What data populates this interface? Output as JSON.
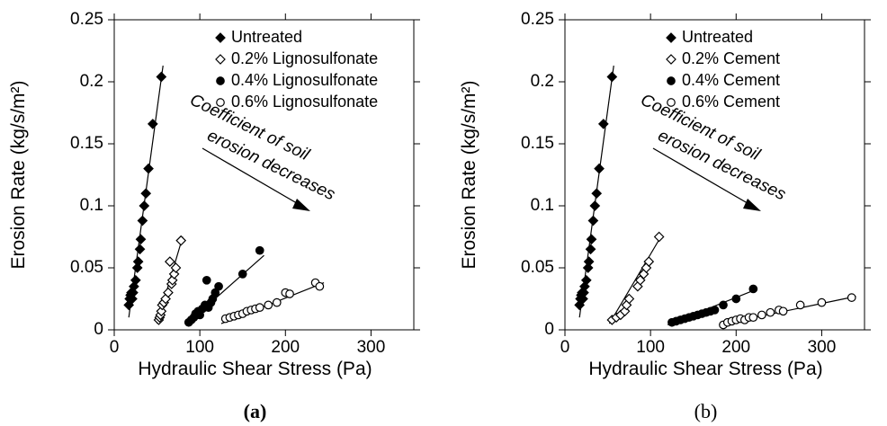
{
  "chart_data": [
    {
      "type": "scatter",
      "panel_label": "(a)",
      "panel_label_bold": true,
      "x_label": "Hydraulic Shear Stress (Pa)",
      "y_label": "Erosion Rate (kg/s/m²)",
      "xlim": [
        0,
        350
      ],
      "ylim": [
        0,
        0.25
      ],
      "xticks": [
        0,
        100,
        200,
        300
      ],
      "yticks": [
        0,
        0.05,
        0.1,
        0.15,
        0.2,
        0.25
      ],
      "legend": "upper right",
      "annotation": [
        "Coefficient of soil",
        "erosion decreases"
      ],
      "series": [
        {
          "name": "Untreated",
          "color": "#000000",
          "marker": "diamond",
          "filled": true,
          "x": [
            17,
            18,
            19,
            20,
            21,
            22,
            23,
            25,
            27,
            28,
            30,
            31,
            33,
            35,
            37,
            40,
            45,
            55
          ],
          "y": [
            0.02,
            0.025,
            0.028,
            0.03,
            0.025,
            0.03,
            0.035,
            0.04,
            0.05,
            0.055,
            0.065,
            0.073,
            0.088,
            0.1,
            0.11,
            0.13,
            0.166,
            0.204
          ],
          "trendline": {
            "x": [
              17,
              57
            ],
            "y": [
              0.01,
              0.213
            ]
          }
        },
        {
          "name": "0.2% Lignosulfonate",
          "color": "#000000",
          "marker": "diamond",
          "filled": false,
          "x": [
            52,
            53,
            54,
            55,
            56,
            58,
            60,
            63,
            65,
            67,
            68,
            70,
            72,
            78
          ],
          "y": [
            0.008,
            0.01,
            0.012,
            0.015,
            0.02,
            0.022,
            0.025,
            0.03,
            0.055,
            0.037,
            0.04,
            0.045,
            0.05,
            0.072
          ],
          "trendline": {
            "x": [
              50,
              80
            ],
            "y": [
              0.005,
              0.075
            ]
          }
        },
        {
          "name": "0.4% Lignosulfonate",
          "color": "#000000",
          "marker": "circle",
          "filled": true,
          "x": [
            87,
            90,
            93,
            95,
            98,
            100,
            103,
            106,
            108,
            110,
            113,
            115,
            118,
            122,
            150,
            170
          ],
          "y": [
            0.006,
            0.008,
            0.01,
            0.013,
            0.015,
            0.012,
            0.017,
            0.02,
            0.04,
            0.018,
            0.022,
            0.025,
            0.03,
            0.035,
            0.045,
            0.064
          ],
          "trendline": {
            "x": [
              85,
              175
            ],
            "y": [
              0.005,
              0.06
            ]
          }
        },
        {
          "name": "0.6% Lignosulfonate",
          "color": "#000000",
          "marker": "circle",
          "filled": false,
          "x": [
            130,
            135,
            140,
            145,
            150,
            155,
            160,
            165,
            170,
            180,
            190,
            200,
            205,
            235,
            240
          ],
          "y": [
            0.009,
            0.01,
            0.011,
            0.012,
            0.013,
            0.015,
            0.016,
            0.017,
            0.018,
            0.02,
            0.022,
            0.03,
            0.029,
            0.038,
            0.035
          ],
          "trendline": {
            "x": [
              125,
              245
            ],
            "y": [
              0.005,
              0.038
            ]
          }
        }
      ]
    },
    {
      "type": "scatter",
      "panel_label": "(b)",
      "panel_label_bold": false,
      "x_label": "Hydraulic Shear Stress (Pa)",
      "y_label": "Erosion Rate (kg/s/m²)",
      "xlim": [
        0,
        350
      ],
      "ylim": [
        0,
        0.25
      ],
      "xticks": [
        0,
        100,
        200,
        300
      ],
      "yticks": [
        0,
        0.05,
        0.1,
        0.15,
        0.2,
        0.25
      ],
      "legend": "upper right",
      "annotation": [
        "Coefficient of soil",
        "erosion decreases"
      ],
      "series": [
        {
          "name": "Untreated",
          "color": "#000000",
          "marker": "diamond",
          "filled": true,
          "x": [
            17,
            18,
            19,
            20,
            21,
            22,
            23,
            25,
            27,
            28,
            30,
            31,
            33,
            35,
            37,
            40,
            45,
            55
          ],
          "y": [
            0.02,
            0.025,
            0.028,
            0.03,
            0.025,
            0.03,
            0.035,
            0.04,
            0.05,
            0.055,
            0.065,
            0.073,
            0.088,
            0.1,
            0.11,
            0.13,
            0.166,
            0.204
          ],
          "trendline": {
            "x": [
              17,
              57
            ],
            "y": [
              0.01,
              0.213
            ]
          }
        },
        {
          "name": "0.2% Cement",
          "color": "#000000",
          "marker": "diamond",
          "filled": false,
          "x": [
            55,
            60,
            65,
            70,
            72,
            75,
            85,
            88,
            92,
            95,
            98,
            110
          ],
          "y": [
            0.008,
            0.01,
            0.012,
            0.015,
            0.02,
            0.025,
            0.035,
            0.04,
            0.045,
            0.05,
            0.055,
            0.075
          ],
          "trendline": {
            "x": [
              52,
              112
            ],
            "y": [
              0.005,
              0.075
            ]
          }
        },
        {
          "name": "0.4% Cement",
          "color": "#000000",
          "marker": "circle",
          "filled": true,
          "x": [
            125,
            130,
            135,
            140,
            145,
            150,
            155,
            160,
            165,
            170,
            175,
            185,
            200,
            220
          ],
          "y": [
            0.006,
            0.007,
            0.008,
            0.009,
            0.01,
            0.011,
            0.012,
            0.013,
            0.014,
            0.015,
            0.016,
            0.02,
            0.025,
            0.033
          ],
          "trendline": {
            "x": [
              120,
              225
            ],
            "y": [
              0.004,
              0.033
            ]
          }
        },
        {
          "name": "0.6% Cement",
          "color": "#000000",
          "marker": "circle",
          "filled": false,
          "x": [
            185,
            190,
            195,
            200,
            205,
            210,
            215,
            220,
            230,
            240,
            250,
            255,
            275,
            300,
            335
          ],
          "y": [
            0.004,
            0.006,
            0.007,
            0.008,
            0.009,
            0.008,
            0.01,
            0.01,
            0.012,
            0.014,
            0.016,
            0.015,
            0.02,
            0.022,
            0.026
          ],
          "trendline": {
            "x": [
              180,
              340
            ],
            "y": [
              0.004,
              0.027
            ]
          }
        }
      ]
    }
  ]
}
